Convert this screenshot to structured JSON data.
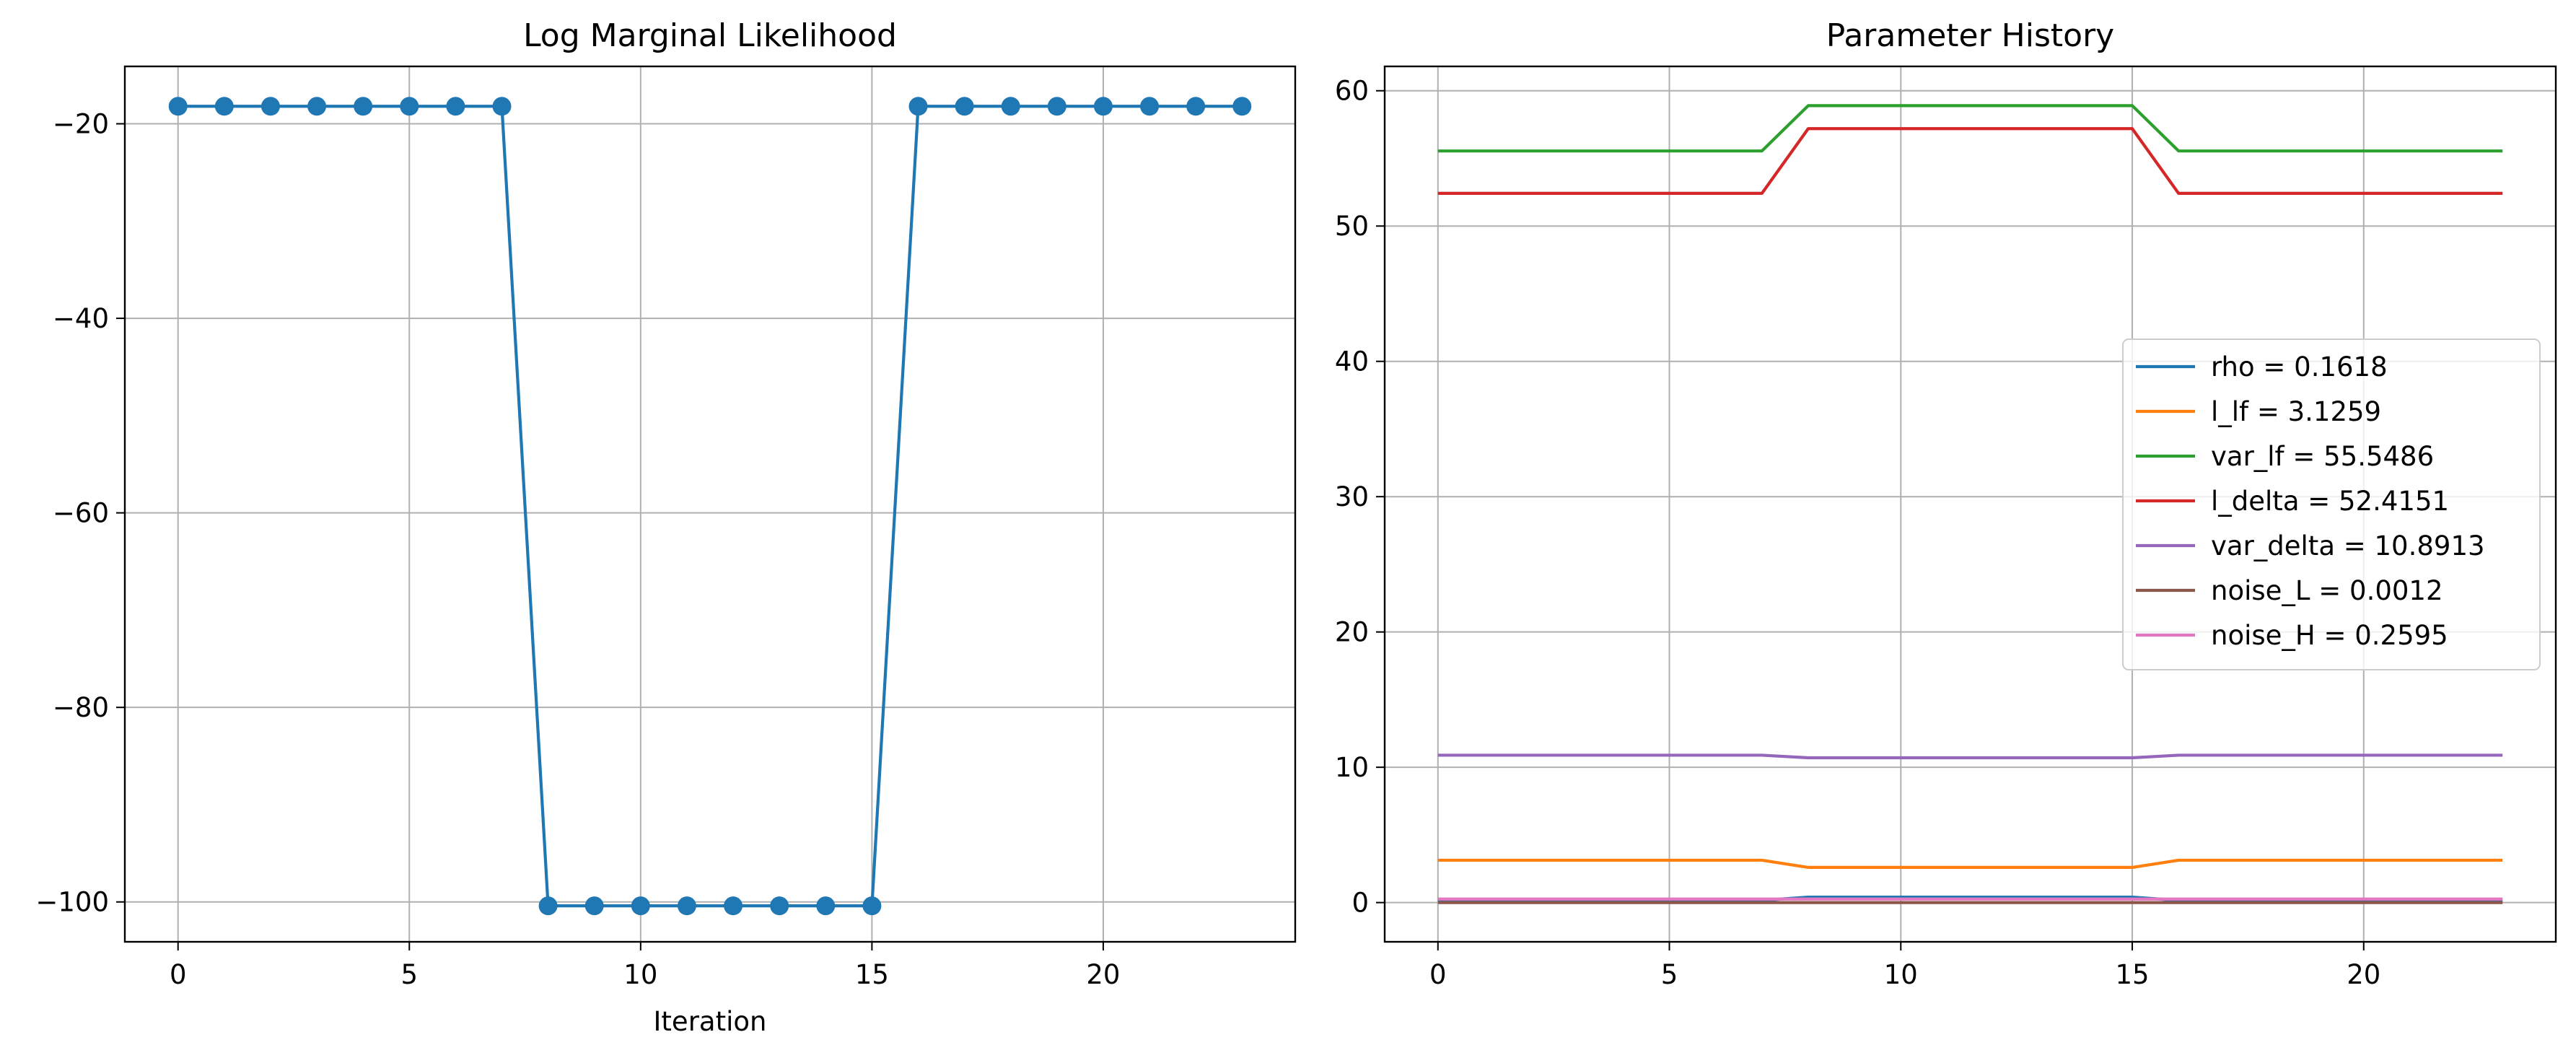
{
  "chart_data": [
    {
      "type": "line",
      "title": "Log Marginal Likelihood",
      "xlabel": "Iteration",
      "ylabel": "",
      "xlim": [
        -1.15,
        24.15
      ],
      "ylim": [
        -104.1,
        -14.1
      ],
      "xticks": [
        0,
        5,
        10,
        15,
        20
      ],
      "xtick_labels": [
        "0",
        "5",
        "10",
        "15",
        "20"
      ],
      "yticks": [
        -20,
        -40,
        -60,
        -80,
        -100
      ],
      "ytick_labels": [
        "−20",
        "−40",
        "−60",
        "−80",
        "−100"
      ],
      "grid": true,
      "markers": true,
      "series": [
        {
          "color": "#1f77b4",
          "x": [
            0,
            1,
            2,
            3,
            4,
            5,
            6,
            7,
            8,
            9,
            10,
            11,
            12,
            13,
            14,
            15,
            16,
            17,
            18,
            19,
            20,
            21,
            22,
            23
          ],
          "y": [
            -18.2,
            -18.2,
            -18.2,
            -18.2,
            -18.2,
            -18.2,
            -18.2,
            -18.2,
            -100.4,
            -100.4,
            -100.4,
            -100.4,
            -100.4,
            -100.4,
            -100.4,
            -100.4,
            -18.2,
            -18.2,
            -18.2,
            -18.2,
            -18.2,
            -18.2,
            -18.2,
            -18.2
          ]
        }
      ]
    },
    {
      "type": "line",
      "title": "Parameter History",
      "xlabel": "",
      "ylabel": "",
      "xlim": [
        -1.15,
        24.15
      ],
      "ylim": [
        -2.9,
        61.8
      ],
      "xticks": [
        0,
        5,
        10,
        15,
        20
      ],
      "xtick_labels": [
        "0",
        "5",
        "10",
        "15",
        "20"
      ],
      "yticks": [
        0,
        10,
        20,
        30,
        40,
        50,
        60
      ],
      "ytick_labels": [
        "0",
        "10",
        "20",
        "30",
        "40",
        "50",
        "60"
      ],
      "grid": true,
      "markers": false,
      "legend_placement": "center-right",
      "series": [
        {
          "name": "rho = 0.1618",
          "color": "#1f77b4",
          "x": [
            0,
            7,
            8,
            15,
            16,
            23
          ],
          "y": [
            0.16,
            0.16,
            0.4,
            0.4,
            0.16,
            0.16
          ]
        },
        {
          "name": "l_lf = 3.1259",
          "color": "#ff7f0e",
          "x": [
            0,
            7,
            8,
            15,
            16,
            23
          ],
          "y": [
            3.13,
            3.13,
            2.6,
            2.6,
            3.13,
            3.13
          ]
        },
        {
          "name": "var_lf = 55.5486",
          "color": "#2ca02c",
          "x": [
            0,
            7,
            8,
            15,
            16,
            23
          ],
          "y": [
            55.55,
            55.55,
            58.9,
            58.9,
            55.55,
            55.55
          ]
        },
        {
          "name": "l_delta = 52.4151",
          "color": "#d62728",
          "x": [
            0,
            7,
            8,
            15,
            16,
            23
          ],
          "y": [
            52.42,
            52.42,
            57.2,
            57.2,
            52.42,
            52.42
          ]
        },
        {
          "name": "var_delta = 10.8913",
          "color": "#9467bd",
          "x": [
            0,
            7,
            8,
            15,
            16,
            23
          ],
          "y": [
            10.89,
            10.89,
            10.7,
            10.7,
            10.89,
            10.89
          ]
        },
        {
          "name": "noise_L = 0.0012",
          "color": "#8c564b",
          "x": [
            0,
            23
          ],
          "y": [
            0.0012,
            0.0012
          ]
        },
        {
          "name": "noise_H = 0.2595",
          "color": "#e377c2",
          "x": [
            0,
            23
          ],
          "y": [
            0.26,
            0.26
          ]
        }
      ]
    }
  ]
}
